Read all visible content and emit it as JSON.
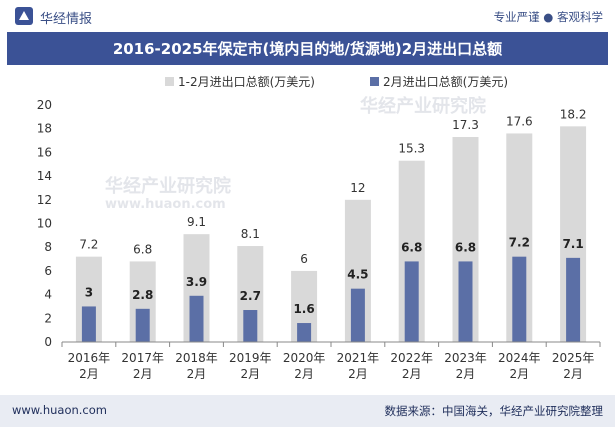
{
  "header": {
    "brand": "华经情报",
    "slogan": "专业严谨 ● 客观科学",
    "title": "2016-2025年保定市(境内目的地/货源地)2月进出口总额"
  },
  "footer": {
    "website": "www.huaon.com",
    "source": "数据来源：中国海关，华经产业研究院整理"
  },
  "watermark": {
    "text": "华经产业研究院",
    "url": "www.huaon.com"
  },
  "colors": {
    "title_bg": "#3b5296",
    "series_total": "#d9d9d9",
    "series_feb": "#5b6fa6",
    "footer_bg": "#e9ecf3"
  },
  "chart_data": {
    "type": "bar",
    "title": "2016-2025年保定市(境内目的地/货源地)2月进出口总额",
    "categories": [
      "2016年2月",
      "2017年2月",
      "2018年2月",
      "2019年2月",
      "2020年2月",
      "2021年2月",
      "2022年2月",
      "2023年2月",
      "2024年2月",
      "2025年2月"
    ],
    "series": [
      {
        "name": "1-2月进出口总额(万美元)",
        "values": [
          7.2,
          6.8,
          9.1,
          8.1,
          6,
          12,
          15.3,
          17.3,
          17.6,
          18.2
        ]
      },
      {
        "name": "2月进出口总额(万美元)",
        "values": [
          3,
          2.8,
          3.9,
          2.7,
          1.6,
          4.5,
          6.8,
          6.8,
          7.2,
          7.1
        ]
      }
    ],
    "ylim": [
      0,
      20
    ],
    "yticks": [
      0,
      2,
      4,
      6,
      8,
      10,
      12,
      14,
      16,
      18,
      20
    ],
    "xlabel": "",
    "ylabel": "",
    "grid": false,
    "legend_position": "top-center"
  }
}
